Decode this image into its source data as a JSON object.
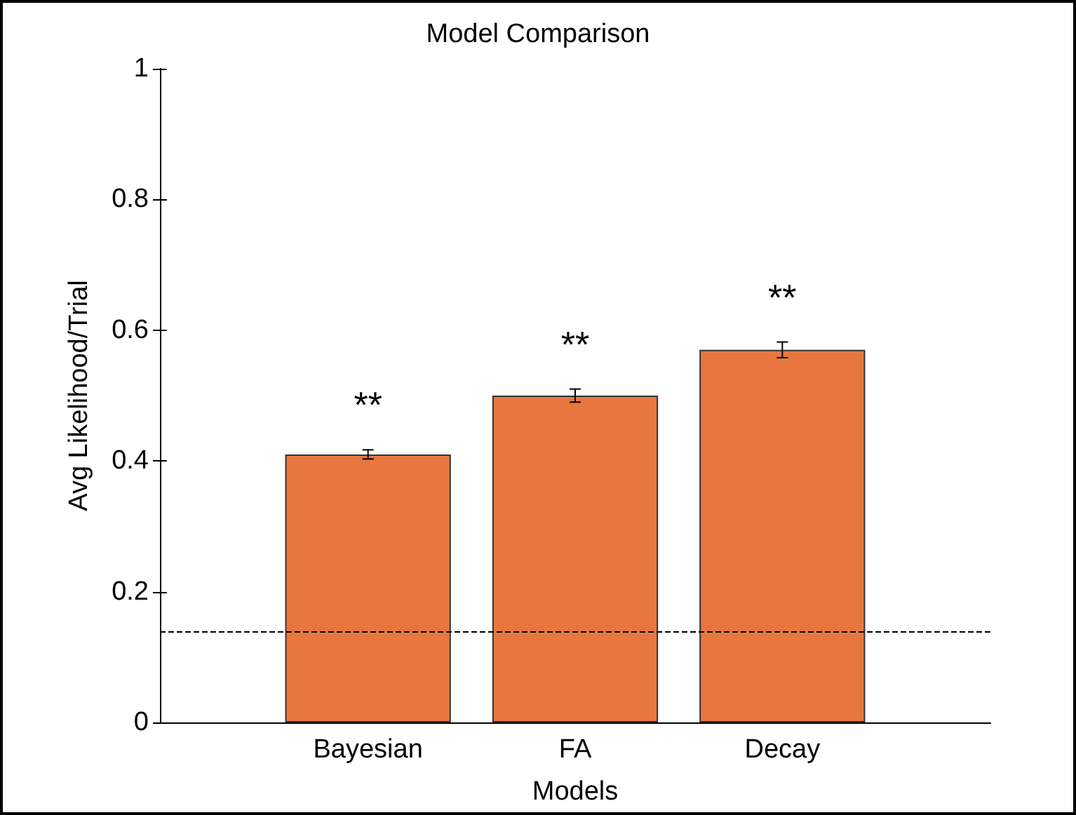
{
  "chart_data": {
    "type": "bar",
    "title": "Model Comparison",
    "xlabel": "Models",
    "ylabel": "Avg Likelihood/Trial",
    "categories": [
      "Bayesian",
      "FA",
      "Decay"
    ],
    "series": [
      {
        "color": "#e8773f",
        "values": [
          0.41,
          0.5,
          0.57
        ],
        "errors": [
          0.007,
          0.01,
          0.012
        ]
      }
    ],
    "ylim": [
      0,
      1
    ],
    "yticks": [
      0,
      0.2,
      0.4,
      0.6,
      0.8,
      1
    ],
    "grid": false,
    "ref_lines": [
      {
        "axis": "y",
        "value": 0.14,
        "line_style": "dashed",
        "color": "#000000"
      }
    ],
    "annotations": [
      "**",
      "**",
      "**"
    ]
  }
}
